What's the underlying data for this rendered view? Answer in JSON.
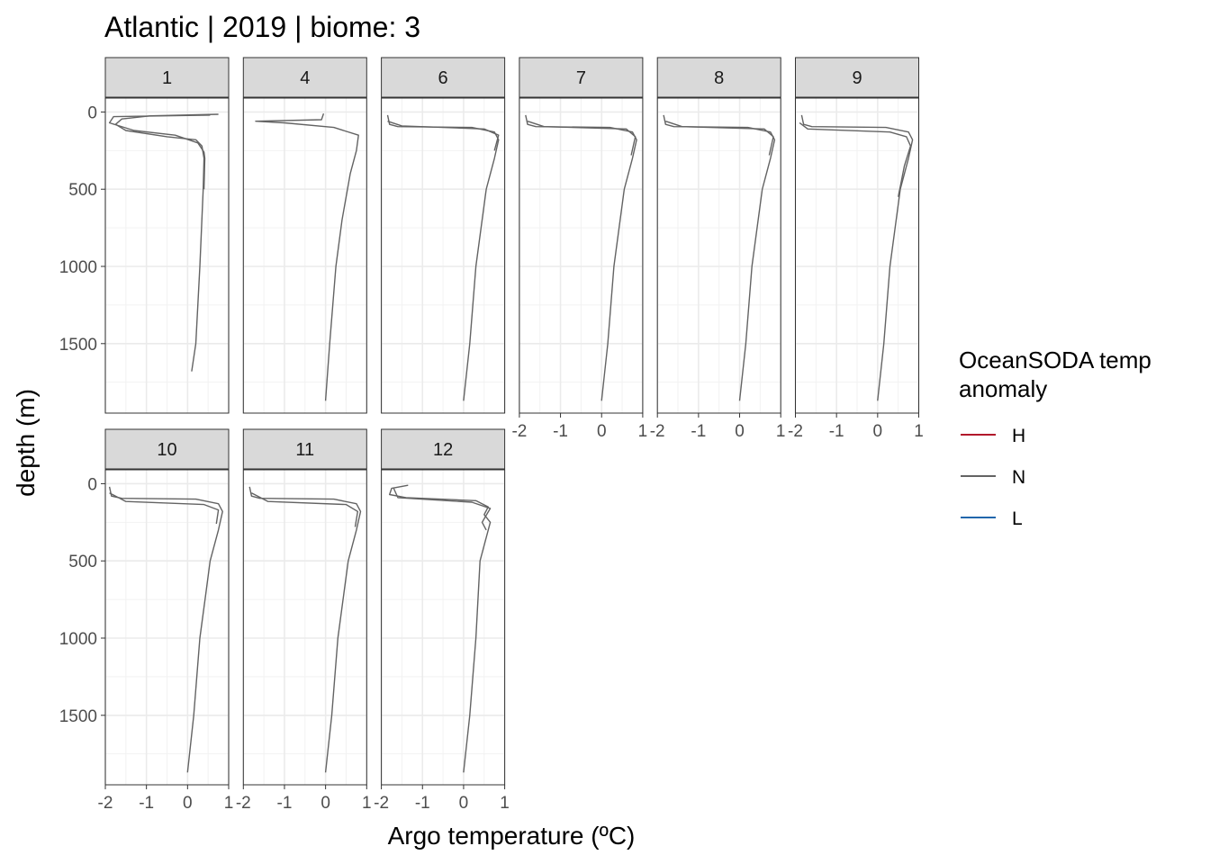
{
  "chart_data": {
    "type": "line",
    "title": "Atlantic | 2019 | biome: 3",
    "xlabel": "Argo temperature (ºC)",
    "ylabel": "depth (m)",
    "xlim": [
      -2,
      1
    ],
    "ylim": [
      1950,
      -90
    ],
    "x_ticks": [
      -2,
      -1,
      0,
      1
    ],
    "y_ticks": [
      0,
      500,
      1000,
      1500
    ],
    "y_reversed": true,
    "grid": true,
    "legend": {
      "title_lines": [
        "OceanSODA temp",
        "anomaly"
      ],
      "placement": "right",
      "entries": [
        {
          "label": "H",
          "color": "#b2182b"
        },
        {
          "label": "N",
          "color": "#636363"
        },
        {
          "label": "L",
          "color": "#2166ac"
        }
      ]
    },
    "panels": [
      {
        "label": "1",
        "series": [
          {
            "group": "N",
            "points": [
              [
                0.75,
                15
              ],
              [
                -0.9,
                25
              ],
              [
                -1.6,
                45
              ],
              [
                -1.75,
                80
              ],
              [
                -1.5,
                120
              ],
              [
                -0.5,
                160
              ],
              [
                0.2,
                180
              ],
              [
                0.35,
                220
              ],
              [
                0.4,
                300
              ],
              [
                0.38,
                500
              ],
              [
                0.3,
                1000
              ],
              [
                0.2,
                1500
              ],
              [
                0.1,
                1680
              ]
            ]
          },
          {
            "group": "N",
            "points": [
              [
                0.55,
                20
              ],
              [
                -1.8,
                30
              ],
              [
                -1.9,
                70
              ],
              [
                -1.3,
                120
              ],
              [
                -0.3,
                150
              ],
              [
                0.25,
                200
              ],
              [
                0.4,
                260
              ],
              [
                0.42,
                300
              ],
              [
                0.4,
                500
              ]
            ]
          }
        ]
      },
      {
        "label": "4",
        "series": [
          {
            "group": "N",
            "points": [
              [
                -0.05,
                10
              ],
              [
                -0.1,
                50
              ],
              [
                -1.7,
                60
              ],
              [
                -1.0,
                70
              ],
              [
                0.2,
                100
              ],
              [
                0.8,
                150
              ],
              [
                0.75,
                250
              ],
              [
                0.6,
                400
              ],
              [
                0.4,
                700
              ],
              [
                0.25,
                1000
              ],
              [
                0.1,
                1500
              ],
              [
                0.0,
                1870
              ]
            ]
          }
        ]
      },
      {
        "label": "6",
        "series": [
          {
            "group": "N",
            "points": [
              [
                -1.85,
                20
              ],
              [
                -1.8,
                80
              ],
              [
                -1.6,
                95
              ],
              [
                0.2,
                100
              ],
              [
                0.75,
                130
              ],
              [
                0.85,
                180
              ],
              [
                0.75,
                300
              ],
              [
                0.55,
                500
              ],
              [
                0.45,
                700
              ],
              [
                0.3,
                1000
              ],
              [
                0.15,
                1500
              ],
              [
                0.0,
                1870
              ]
            ]
          },
          {
            "group": "N",
            "points": [
              [
                -1.85,
                60
              ],
              [
                -1.5,
                90
              ],
              [
                0.5,
                110
              ],
              [
                0.85,
                150
              ],
              [
                0.75,
                250
              ]
            ]
          }
        ]
      },
      {
        "label": "7",
        "series": [
          {
            "group": "N",
            "points": [
              [
                -1.85,
                20
              ],
              [
                -1.8,
                80
              ],
              [
                -1.6,
                95
              ],
              [
                0.2,
                100
              ],
              [
                0.75,
                130
              ],
              [
                0.85,
                180
              ],
              [
                0.75,
                300
              ],
              [
                0.55,
                500
              ],
              [
                0.45,
                700
              ],
              [
                0.3,
                1000
              ],
              [
                0.15,
                1500
              ],
              [
                0.0,
                1870
              ]
            ]
          },
          {
            "group": "N",
            "points": [
              [
                -1.8,
                60
              ],
              [
                -1.4,
                95
              ],
              [
                0.6,
                110
              ],
              [
                0.82,
                160
              ],
              [
                0.72,
                280
              ]
            ]
          }
        ]
      },
      {
        "label": "8",
        "series": [
          {
            "group": "N",
            "points": [
              [
                -1.85,
                20
              ],
              [
                -1.8,
                80
              ],
              [
                -1.6,
                95
              ],
              [
                0.2,
                100
              ],
              [
                0.75,
                130
              ],
              [
                0.85,
                180
              ],
              [
                0.75,
                300
              ],
              [
                0.55,
                500
              ],
              [
                0.45,
                700
              ],
              [
                0.3,
                1000
              ],
              [
                0.15,
                1500
              ],
              [
                0.0,
                1870
              ]
            ]
          },
          {
            "group": "N",
            "points": [
              [
                -1.8,
                60
              ],
              [
                -1.4,
                95
              ],
              [
                0.6,
                110
              ],
              [
                0.82,
                160
              ],
              [
                0.72,
                280
              ]
            ]
          }
        ]
      },
      {
        "label": "9",
        "series": [
          {
            "group": "N",
            "points": [
              [
                -1.85,
                20
              ],
              [
                -1.8,
                80
              ],
              [
                -1.6,
                95
              ],
              [
                0.2,
                100
              ],
              [
                0.75,
                130
              ],
              [
                0.85,
                180
              ],
              [
                0.75,
                300
              ],
              [
                0.55,
                500
              ],
              [
                0.45,
                700
              ],
              [
                0.3,
                1000
              ],
              [
                0.15,
                1500
              ],
              [
                0.0,
                1870
              ]
            ]
          },
          {
            "group": "N",
            "points": [
              [
                -1.9,
                70
              ],
              [
                -1.7,
                110
              ],
              [
                0.3,
                130
              ],
              [
                0.7,
                160
              ],
              [
                0.8,
                220
              ],
              [
                0.65,
                350
              ],
              [
                0.5,
                550
              ]
            ]
          }
        ]
      },
      {
        "label": "10",
        "series": [
          {
            "group": "N",
            "points": [
              [
                -1.9,
                20
              ],
              [
                -1.85,
                80
              ],
              [
                -1.6,
                95
              ],
              [
                0.2,
                100
              ],
              [
                0.75,
                130
              ],
              [
                0.85,
                180
              ],
              [
                0.75,
                300
              ],
              [
                0.55,
                500
              ],
              [
                0.45,
                700
              ],
              [
                0.3,
                1000
              ],
              [
                0.15,
                1500
              ],
              [
                0.0,
                1870
              ]
            ]
          },
          {
            "group": "N",
            "points": [
              [
                -1.9,
                60
              ],
              [
                -1.5,
                115
              ],
              [
                0.4,
                135
              ],
              [
                0.75,
                170
              ],
              [
                0.7,
                260
              ]
            ]
          }
        ]
      },
      {
        "label": "11",
        "series": [
          {
            "group": "N",
            "points": [
              [
                -1.85,
                20
              ],
              [
                -1.8,
                80
              ],
              [
                -1.6,
                95
              ],
              [
                0.2,
                100
              ],
              [
                0.75,
                130
              ],
              [
                0.85,
                180
              ],
              [
                0.75,
                300
              ],
              [
                0.55,
                500
              ],
              [
                0.45,
                700
              ],
              [
                0.3,
                1000
              ],
              [
                0.15,
                1500
              ],
              [
                0.0,
                1870
              ]
            ]
          },
          {
            "group": "N",
            "points": [
              [
                -1.8,
                60
              ],
              [
                -1.4,
                115
              ],
              [
                0.5,
                135
              ],
              [
                0.78,
                180
              ],
              [
                0.72,
                280
              ]
            ]
          }
        ]
      },
      {
        "label": "12",
        "series": [
          {
            "group": "N",
            "points": [
              [
                -1.35,
                10
              ],
              [
                -1.75,
                30
              ],
              [
                -1.8,
                70
              ],
              [
                -1.4,
                90
              ],
              [
                0.3,
                110
              ],
              [
                0.6,
                150
              ],
              [
                0.5,
                200
              ],
              [
                0.65,
                250
              ],
              [
                0.6,
                300
              ],
              [
                0.4,
                500
              ],
              [
                0.3,
                1000
              ],
              [
                0.15,
                1500
              ],
              [
                0.0,
                1870
              ]
            ]
          },
          {
            "group": "N",
            "points": [
              [
                -1.7,
                30
              ],
              [
                -1.6,
                90
              ],
              [
                0.2,
                120
              ],
              [
                0.65,
                160
              ],
              [
                0.45,
                250
              ],
              [
                0.55,
                300
              ]
            ]
          }
        ]
      }
    ]
  }
}
